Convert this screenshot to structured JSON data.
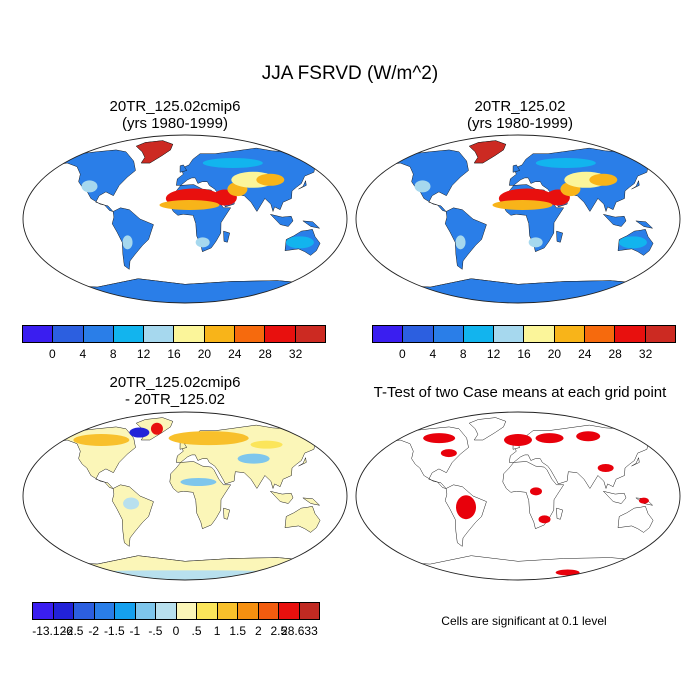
{
  "figure": {
    "title": "JJA FSRVD (W/m^2)",
    "colors": {
      "mean_palette": [
        "#3a1ef0",
        "#2c5fe0",
        "#2a7ee8",
        "#12b4ee",
        "#a6d8ee",
        "#fbf59a",
        "#f8b419",
        "#f66a0d",
        "#e8100e",
        "#cc2a22"
      ],
      "diff_palette": [
        "#3a1ef0",
        "#2222d8",
        "#2c5fe0",
        "#2a7ee8",
        "#15a0ee",
        "#7ec6ec",
        "#b8e0ee",
        "#fbf6b8",
        "#fbe55a",
        "#f8c02b",
        "#f69010",
        "#f25c0f",
        "#e8100e",
        "#c02a22"
      ],
      "ttest": "#e8000b",
      "land_mask": "#ffffff"
    }
  },
  "panels": [
    {
      "title_line1": "20TR_125.02cmip6",
      "title_line2": "(yrs 1980-1999)",
      "colorbar_labels": [
        "0",
        "4",
        "8",
        "12",
        "16",
        "20",
        "24",
        "28",
        "32"
      ],
      "region_values": {
        "continents": 4,
        "sahara_arabia": 30,
        "sahel_mideast": 22,
        "central_asia": 18,
        "greenland": 32,
        "antarctica": 4
      }
    },
    {
      "title_line1": "20TR_125.02",
      "title_line2": "(yrs 1980-1999)",
      "colorbar_labels": [
        "0",
        "4",
        "8",
        "12",
        "16",
        "20",
        "24",
        "28",
        "32"
      ],
      "region_values": {
        "continents": 4,
        "sahara_arabia": 30,
        "sahel_mideast": 22,
        "central_asia": 18,
        "greenland": 32,
        "antarctica": 4
      }
    },
    {
      "title_line1": "20TR_125.02cmip6",
      "title_line2": "- 20TR_125.02",
      "colorbar_labels": [
        "-13.126",
        "-2.5",
        "-2",
        "-1.5",
        "-1",
        "-.5",
        "0",
        ".5",
        "1",
        "1.5",
        "2",
        "2.5",
        "28.633"
      ],
      "region_values": {
        "continents": 0.3,
        "greenland_edge": -2.5,
        "high_latitude_north": 1.2,
        "antarctica_coast": 0.3
      }
    },
    {
      "title_line1": "T-Test of two Case means at each grid point",
      "note": "Cells are significant at 0.1 level"
    }
  ]
}
